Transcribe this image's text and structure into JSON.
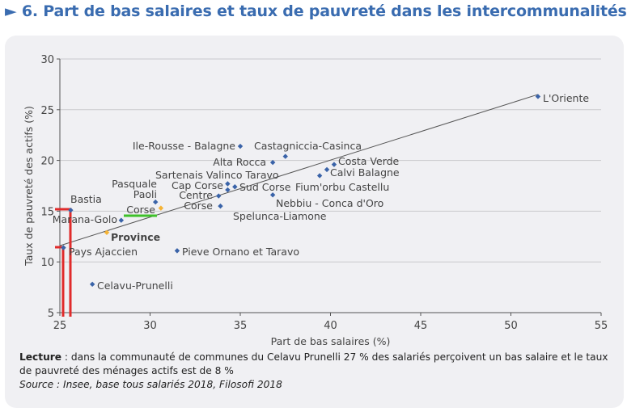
{
  "title": "6. Part de bas salaires et taux de pauvreté dans les intercommunalités",
  "chart_data": {
    "type": "scatter",
    "xlabel": "Part de bas salaires (%)",
    "ylabel": "Taux de pauvreté des actifs (%)",
    "xlim": [
      25,
      55
    ],
    "ylim": [
      5,
      30
    ],
    "xticks": [
      25,
      30,
      35,
      40,
      45,
      50,
      55
    ],
    "yticks": [
      5,
      10,
      15,
      20,
      25,
      30
    ],
    "grid": "horizontal",
    "trendline": {
      "x": [
        25,
        51.5
      ],
      "y": [
        11.6,
        26.5
      ]
    },
    "points": [
      {
        "label": "L'Oriente",
        "x": 51.5,
        "y": 26.3,
        "color": "#3a63a8"
      },
      {
        "label": "Ile-Rousse - Balagne",
        "x": 35.0,
        "y": 21.4,
        "color": "#3a63a8"
      },
      {
        "label": "Castagniccia-Casinca",
        "x": 37.5,
        "y": 20.4,
        "color": "#3a63a8"
      },
      {
        "label": "Alta Rocca",
        "x": 36.8,
        "y": 19.8,
        "color": "#3a63a8"
      },
      {
        "label": "Costa Verde",
        "x": 40.2,
        "y": 19.6,
        "color": "#3a63a8"
      },
      {
        "label": "Calvi Balagne",
        "x": 39.8,
        "y": 19.1,
        "color": "#3a63a8"
      },
      {
        "label": "Fium'orbu Castellu",
        "x": 39.4,
        "y": 18.5,
        "color": "#3a63a8"
      },
      {
        "label": "Sartenais Valinco Taravo",
        "x": 34.3,
        "y": 17.7,
        "color": "#3a63a8"
      },
      {
        "label": "Cap Corse",
        "x": 34.3,
        "y": 17.1,
        "color": "#3a63a8"
      },
      {
        "label": "Sud Corse",
        "x": 34.7,
        "y": 17.4,
        "color": "#3a63a8"
      },
      {
        "label": "Centre Corse",
        "x": 33.8,
        "y": 16.5,
        "color": "#3a63a8"
      },
      {
        "label": "Spelunca-Liamone",
        "x": 33.9,
        "y": 15.5,
        "color": "#3a63a8"
      },
      {
        "label": "Nebbiu - Conca d'Oro",
        "x": 36.8,
        "y": 16.6,
        "color": "#3a63a8"
      },
      {
        "label": "Pasquale Paoli",
        "x": 30.3,
        "y": 15.9,
        "color": "#3a63a8"
      },
      {
        "label": "Corse",
        "x": 30.6,
        "y": 15.3,
        "color": "#f5b335"
      },
      {
        "label": "Bastia",
        "x": 25.6,
        "y": 15.1,
        "color": "#3a63a8"
      },
      {
        "label": "Marana-Golo",
        "x": 28.4,
        "y": 14.1,
        "color": "#3a63a8"
      },
      {
        "label": "Province",
        "x": 27.6,
        "y": 12.9,
        "color": "#f5b335"
      },
      {
        "label": "Pays Ajaccien",
        "x": 25.2,
        "y": 11.4,
        "color": "#3a63a8"
      },
      {
        "label": "Pieve Ornano et Taravo",
        "x": 31.5,
        "y": 11.1,
        "color": "#3a63a8"
      },
      {
        "label": "Celavu-Prunelli",
        "x": 26.8,
        "y": 7.8,
        "color": "#3a63a8"
      }
    ]
  },
  "notes": {
    "lecture_label": "Lecture",
    "lecture_text": " : dans la communauté de communes du Celavu Prunelli 27 % des salariés perçoivent un bas salaire et le taux de pauvreté des ménages actifs est de 8 %",
    "source": "Source : Insee, base tous salariés 2018, Filosofi 2018"
  }
}
